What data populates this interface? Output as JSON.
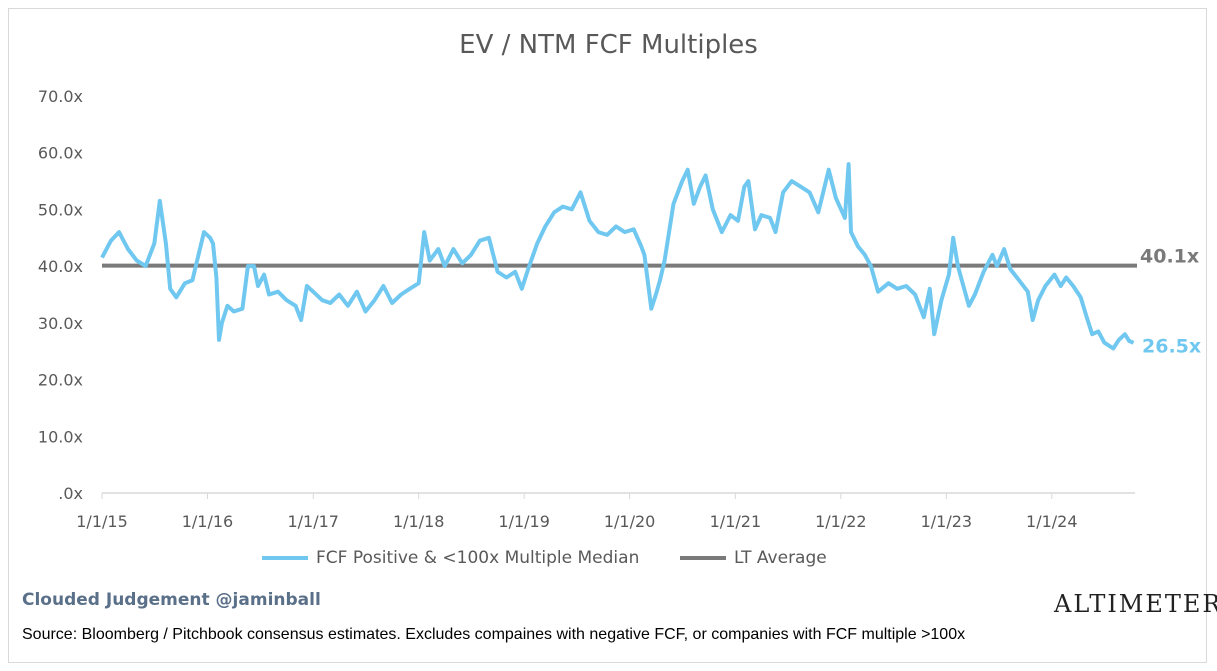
{
  "chart_data": {
    "type": "line",
    "title": "EV / NTM FCF Multiples",
    "xlabel": "",
    "ylabel": "",
    "ylim": [
      0,
      70
    ],
    "y_ticks": [
      ".0x",
      "10.0x",
      "20.0x",
      "30.0x",
      "40.0x",
      "50.0x",
      "60.0x",
      "70.0x"
    ],
    "x_ticks": [
      "1/1/15",
      "1/1/16",
      "1/1/17",
      "1/1/18",
      "1/1/19",
      "1/1/20",
      "1/1/21",
      "1/1/22",
      "1/1/23",
      "1/1/24"
    ],
    "xlim": [
      "2015-01-01",
      "2024-10-15"
    ],
    "series": [
      {
        "name": "FCF Positive & <100x Multiple Median",
        "color": "#70c8f0",
        "end_label": "26.5x",
        "points": [
          [
            "2015-01-01",
            41.5
          ],
          [
            "2015-02-01",
            44.5
          ],
          [
            "2015-03-01",
            46
          ],
          [
            "2015-04-01",
            43
          ],
          [
            "2015-05-01",
            41
          ],
          [
            "2015-06-01",
            40
          ],
          [
            "2015-07-01",
            44
          ],
          [
            "2015-07-20",
            51.5
          ],
          [
            "2015-08-10",
            44
          ],
          [
            "2015-08-25",
            36
          ],
          [
            "2015-09-15",
            34.5
          ],
          [
            "2015-10-15",
            37
          ],
          [
            "2015-11-10",
            37.5
          ],
          [
            "2015-12-01",
            42
          ],
          [
            "2015-12-20",
            46
          ],
          [
            "2016-01-10",
            45
          ],
          [
            "2016-01-20",
            44
          ],
          [
            "2016-02-01",
            38
          ],
          [
            "2016-02-10",
            27
          ],
          [
            "2016-02-20",
            30
          ],
          [
            "2016-03-10",
            33
          ],
          [
            "2016-04-01",
            32
          ],
          [
            "2016-05-01",
            32.5
          ],
          [
            "2016-05-20",
            40
          ],
          [
            "2016-06-10",
            40
          ],
          [
            "2016-06-24",
            36.5
          ],
          [
            "2016-07-15",
            38.5
          ],
          [
            "2016-08-01",
            35
          ],
          [
            "2016-09-01",
            35.5
          ],
          [
            "2016-10-01",
            34
          ],
          [
            "2016-11-01",
            33
          ],
          [
            "2016-11-20",
            30.5
          ],
          [
            "2016-12-10",
            36.5
          ],
          [
            "2017-01-01",
            35.5
          ],
          [
            "2017-02-01",
            34
          ],
          [
            "2017-03-01",
            33.5
          ],
          [
            "2017-04-01",
            35
          ],
          [
            "2017-05-01",
            33
          ],
          [
            "2017-06-01",
            35.5
          ],
          [
            "2017-07-01",
            32
          ],
          [
            "2017-08-01",
            34
          ],
          [
            "2017-09-01",
            36.5
          ],
          [
            "2017-10-01",
            33.5
          ],
          [
            "2017-11-01",
            35
          ],
          [
            "2017-12-01",
            36
          ],
          [
            "2018-01-01",
            37
          ],
          [
            "2018-01-20",
            46
          ],
          [
            "2018-02-08",
            41
          ],
          [
            "2018-03-10",
            43
          ],
          [
            "2018-04-01",
            40
          ],
          [
            "2018-05-01",
            43
          ],
          [
            "2018-06-01",
            40.5
          ],
          [
            "2018-07-01",
            42
          ],
          [
            "2018-08-01",
            44.5
          ],
          [
            "2018-09-01",
            45
          ],
          [
            "2018-10-01",
            39
          ],
          [
            "2018-11-01",
            38
          ],
          [
            "2018-12-01",
            39
          ],
          [
            "2018-12-24",
            36
          ],
          [
            "2019-01-15",
            39.5
          ],
          [
            "2019-02-15",
            44
          ],
          [
            "2019-03-15",
            47
          ],
          [
            "2019-04-15",
            49.5
          ],
          [
            "2019-05-15",
            50.5
          ],
          [
            "2019-06-15",
            50
          ],
          [
            "2019-07-15",
            53
          ],
          [
            "2019-08-15",
            48
          ],
          [
            "2019-09-15",
            46
          ],
          [
            "2019-10-15",
            45.5
          ],
          [
            "2019-11-15",
            47
          ],
          [
            "2019-12-15",
            46
          ],
          [
            "2020-01-15",
            46.5
          ],
          [
            "2020-02-10",
            43.5
          ],
          [
            "2020-02-21",
            42
          ],
          [
            "2020-03-16",
            32.5
          ],
          [
            "2020-04-01",
            35
          ],
          [
            "2020-04-15",
            37.5
          ],
          [
            "2020-05-01",
            41
          ],
          [
            "2020-06-01",
            51
          ],
          [
            "2020-07-01",
            55
          ],
          [
            "2020-07-20",
            57
          ],
          [
            "2020-08-10",
            51
          ],
          [
            "2020-09-01",
            54
          ],
          [
            "2020-09-20",
            56
          ],
          [
            "2020-10-15",
            50
          ],
          [
            "2020-11-15",
            46
          ],
          [
            "2020-12-15",
            49
          ],
          [
            "2021-01-10",
            48
          ],
          [
            "2021-02-01",
            54
          ],
          [
            "2021-02-15",
            55
          ],
          [
            "2021-03-10",
            46.5
          ],
          [
            "2021-04-01",
            49
          ],
          [
            "2021-05-01",
            48.5
          ],
          [
            "2021-05-20",
            46
          ],
          [
            "2021-06-15",
            53
          ],
          [
            "2021-07-15",
            55
          ],
          [
            "2021-08-15",
            54
          ],
          [
            "2021-09-15",
            53
          ],
          [
            "2021-10-15",
            49.5
          ],
          [
            "2021-11-01",
            53
          ],
          [
            "2021-11-20",
            57
          ],
          [
            "2021-12-15",
            52
          ],
          [
            "2022-01-15",
            48.5
          ],
          [
            "2022-01-28",
            58
          ],
          [
            "2022-02-05",
            46
          ],
          [
            "2022-03-01",
            43.5
          ],
          [
            "2022-03-25",
            42
          ],
          [
            "2022-04-15",
            40
          ],
          [
            "2022-05-10",
            35.5
          ],
          [
            "2022-06-15",
            37
          ],
          [
            "2022-07-15",
            36
          ],
          [
            "2022-08-15",
            36.5
          ],
          [
            "2022-09-15",
            35
          ],
          [
            "2022-10-15",
            31
          ],
          [
            "2022-11-05",
            36
          ],
          [
            "2022-11-20",
            28
          ],
          [
            "2022-12-15",
            34
          ],
          [
            "2023-01-10",
            38.5
          ],
          [
            "2023-01-25",
            45
          ],
          [
            "2023-02-10",
            40
          ],
          [
            "2023-03-01",
            36.5
          ],
          [
            "2023-03-20",
            33
          ],
          [
            "2023-04-10",
            35
          ],
          [
            "2023-05-10",
            39
          ],
          [
            "2023-06-10",
            42
          ],
          [
            "2023-06-25",
            40
          ],
          [
            "2023-07-20",
            43
          ],
          [
            "2023-08-10",
            39.5
          ],
          [
            "2023-09-10",
            37.5
          ],
          [
            "2023-10-10",
            35.5
          ],
          [
            "2023-10-27",
            30.5
          ],
          [
            "2023-11-15",
            34
          ],
          [
            "2023-12-10",
            36.5
          ],
          [
            "2024-01-10",
            38.5
          ],
          [
            "2024-02-01",
            36.5
          ],
          [
            "2024-02-20",
            38
          ],
          [
            "2024-03-15",
            36.5
          ],
          [
            "2024-04-10",
            34.5
          ],
          [
            "2024-05-01",
            31
          ],
          [
            "2024-05-20",
            28
          ],
          [
            "2024-06-10",
            28.5
          ],
          [
            "2024-07-01",
            26.5
          ],
          [
            "2024-08-01",
            25.5
          ],
          [
            "2024-08-20",
            27
          ],
          [
            "2024-09-10",
            28
          ],
          [
            "2024-09-25",
            26.8
          ],
          [
            "2024-10-10",
            26.5
          ]
        ]
      },
      {
        "name": "LT Average",
        "color": "#7a7a7a",
        "end_label": "40.1x",
        "value": 40.1
      }
    ],
    "legend_position": "bottom",
    "grid": false
  },
  "footer": {
    "credit": "Clouded Judgement @jaminball",
    "logo": "ALTIMETER",
    "source": "Source: Bloomberg / Pitchbook consensus estimates. Excludes compaines with negative FCF, or companies with FCF multiple >100x"
  }
}
